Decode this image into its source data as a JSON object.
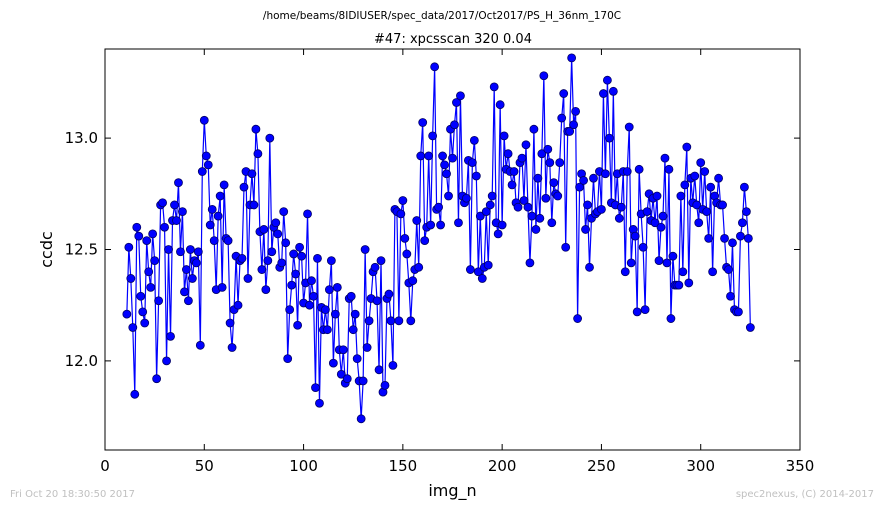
{
  "figure": {
    "subtitle": "/home/beams/8IDIUSER/spec_data/2017/Oct2017/PS_H_36nm_170C",
    "footer_left": "Fri Oct 20 18:30:50 2017",
    "footer_right": "spec2nexus, (C) 2014-2017"
  },
  "colors": {
    "series": "#0000ff",
    "series_line": "#0000ff",
    "marker_edge": "#000066",
    "footer": "#c0c0c0"
  },
  "chart_data": {
    "type": "line",
    "title": "#47: xpcsscan 320 0.04",
    "xlabel": "img_n",
    "ylabel": "ccdc",
    "xlim": [
      0,
      350
    ],
    "ylim": [
      11.6,
      13.4
    ],
    "xticks": [
      0,
      50,
      100,
      150,
      200,
      250,
      300,
      350
    ],
    "xtick_labels": [
      "0",
      "50",
      "100",
      "150",
      "200",
      "250",
      "300",
      "350"
    ],
    "yticks": [
      12.0,
      12.5,
      13.0
    ],
    "ytick_labels": [
      "12.0",
      "12.5",
      "13.0"
    ],
    "grid": false,
    "legend": "none",
    "marker": "circle",
    "series": [
      {
        "x_start": 11,
        "x_step": 1,
        "values": [
          12.21,
          12.51,
          12.37,
          12.15,
          11.85,
          12.6,
          12.56,
          12.29,
          12.22,
          12.17,
          12.54,
          12.4,
          12.33,
          12.57,
          12.45,
          11.92,
          12.27,
          12.7,
          12.71,
          12.6,
          12.0,
          12.5,
          12.11,
          12.63,
          12.7,
          12.63,
          12.8,
          12.49,
          12.67,
          12.31,
          12.41,
          12.27,
          12.5,
          12.37,
          12.45,
          12.44,
          12.49,
          12.07,
          12.85,
          13.08,
          12.92,
          12.88,
          12.61,
          12.68,
          12.54,
          12.32,
          12.65,
          12.74,
          12.33,
          12.79,
          12.55,
          12.54,
          12.17,
          12.06,
          12.23,
          12.47,
          12.25,
          12.45,
          12.46,
          12.78,
          12.85,
          12.37,
          12.7,
          12.84,
          12.7,
          13.04,
          12.93,
          12.58,
          12.41,
          12.59,
          12.32,
          12.45,
          13.0,
          12.49,
          12.6,
          12.62,
          12.57,
          12.42,
          12.44,
          12.67,
          12.53,
          12.01,
          12.23,
          12.34,
          12.48,
          12.39,
          12.16,
          12.51,
          12.47,
          12.26,
          12.35,
          12.66,
          12.25,
          12.36,
          12.29,
          11.88,
          12.46,
          11.81,
          12.24,
          12.14,
          12.23,
          12.14,
          12.32,
          12.45,
          11.99,
          12.21,
          12.33,
          12.05,
          11.94,
          12.05,
          11.9,
          11.92,
          12.28,
          12.29,
          12.14,
          12.21,
          12.01,
          11.91,
          11.74,
          11.91,
          12.5,
          12.06,
          12.18,
          12.28,
          12.4,
          12.42,
          12.27,
          11.96,
          12.45,
          11.86,
          11.89,
          12.28,
          12.3,
          12.18,
          11.98,
          12.68,
          12.67,
          12.18,
          12.66,
          12.72,
          12.55,
          12.48,
          12.35,
          12.18,
          12.36,
          12.41,
          12.63,
          12.42,
          12.92,
          13.07,
          12.54,
          12.6,
          12.92,
          12.61,
          13.01,
          13.32,
          12.68,
          12.69,
          12.61,
          12.92,
          12.88,
          12.84,
          12.74,
          13.04,
          12.91,
          13.06,
          13.16,
          12.62,
          13.19,
          12.74,
          12.71,
          12.73,
          12.9,
          12.41,
          12.89,
          12.99,
          12.83,
          12.4,
          12.65,
          12.37,
          12.42,
          12.67,
          12.43,
          12.7,
          12.74,
          13.23,
          12.62,
          12.57,
          13.15,
          12.61,
          13.01,
          12.86,
          12.93,
          12.85,
          12.79,
          12.85,
          12.71,
          12.69,
          12.89,
          12.91,
          12.72,
          12.97,
          12.69,
          12.44,
          12.65,
          13.04,
          12.59,
          12.82,
          12.64,
          12.93,
          13.28,
          12.73,
          12.95,
          12.89,
          12.62,
          12.8,
          12.75,
          12.74,
          12.89,
          13.09,
          13.2,
          12.51,
          13.03,
          13.03,
          13.36,
          13.06,
          13.12,
          12.19,
          12.78,
          12.84,
          12.81,
          12.59,
          12.7,
          12.42,
          12.64,
          12.82,
          12.66,
          12.67,
          12.85,
          12.68,
          13.2,
          12.84,
          13.26,
          13.0,
          12.71,
          13.21,
          12.7,
          12.84,
          12.64,
          12.69,
          12.85,
          12.4,
          12.85,
          13.05,
          12.44,
          12.59,
          12.56,
          12.22,
          12.86,
          12.66,
          12.51,
          12.23,
          12.67,
          12.75,
          12.63,
          12.73,
          12.62,
          12.74,
          12.45,
          12.6,
          12.65,
          12.91,
          12.44,
          12.86,
          12.19,
          12.47,
          12.34,
          12.34,
          12.34,
          12.74,
          12.4,
          12.79,
          12.96,
          12.35,
          12.82,
          12.71,
          12.83,
          12.7,
          12.62,
          12.89,
          12.68,
          12.85,
          12.67,
          12.55,
          12.78,
          12.4,
          12.74,
          12.71,
          12.82,
          12.7,
          12.7,
          12.55,
          12.42,
          12.41,
          12.29,
          12.53,
          12.23,
          12.22,
          12.22,
          12.56,
          12.62,
          12.78,
          12.67,
          12.55,
          12.15
        ]
      }
    ]
  }
}
